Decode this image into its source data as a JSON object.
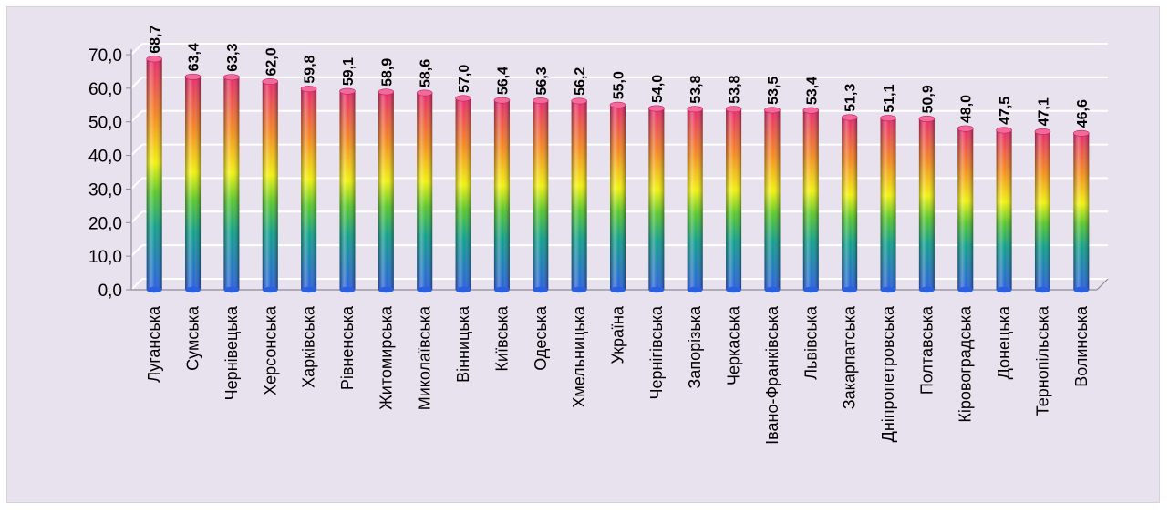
{
  "chart_data": {
    "type": "bar",
    "categories": [
      "Луганська",
      "Сумська",
      "Чернівецька",
      "Херсонська",
      "Харківська",
      "Рівненська",
      "Житомирська",
      "Миколаївська",
      "Вінницька",
      "Київська",
      "Одеська",
      "Хмельницька",
      "Україна",
      "Чернігівська",
      "Запорізька",
      "Черкаська",
      "Івано-Франківська",
      "Львівська",
      "Закарпатська",
      "Дніпропетровська",
      "Полтавська",
      "Кіровоградська",
      "Донецька",
      "Тернопільська",
      "Волинська"
    ],
    "values": [
      68.7,
      63.4,
      63.3,
      62.0,
      59.8,
      59.1,
      58.9,
      58.6,
      57.0,
      56.4,
      56.3,
      56.2,
      55.0,
      54.0,
      53.8,
      53.8,
      53.5,
      53.4,
      51.3,
      51.1,
      50.9,
      48.0,
      47.5,
      47.1,
      46.6
    ],
    "value_labels": [
      "68,7",
      "63,4",
      "63,3",
      "62,0",
      "59,8",
      "59,1",
      "58,9",
      "58,6",
      "57,0",
      "56,4",
      "56,3",
      "56,2",
      "55,0",
      "54,0",
      "53,8",
      "53,8",
      "53,5",
      "53,4",
      "51,3",
      "51,1",
      "50,9",
      "48,0",
      "47,5",
      "47,1",
      "46,6"
    ],
    "y_ticks": [
      0,
      10,
      20,
      30,
      40,
      50,
      60,
      70
    ],
    "y_tick_labels": [
      "0,0",
      "10,0",
      "20,0",
      "30,0",
      "40,0",
      "50,0",
      "60,0",
      "70,0"
    ],
    "ylim": [
      0,
      70
    ],
    "grid": true,
    "bar_style": "3d-cylinder-rainbow-gradient",
    "colors": {
      "background": "#e8e2ef",
      "gridline": "#ffffff",
      "gradient_bottom": "#2a5fe0",
      "gradient_teal": "#10a08c",
      "gradient_green": "#58c82a",
      "gradient_yellow": "#f2f20c",
      "gradient_orange": "#f58a1e",
      "gradient_top": "#e8286e"
    }
  }
}
